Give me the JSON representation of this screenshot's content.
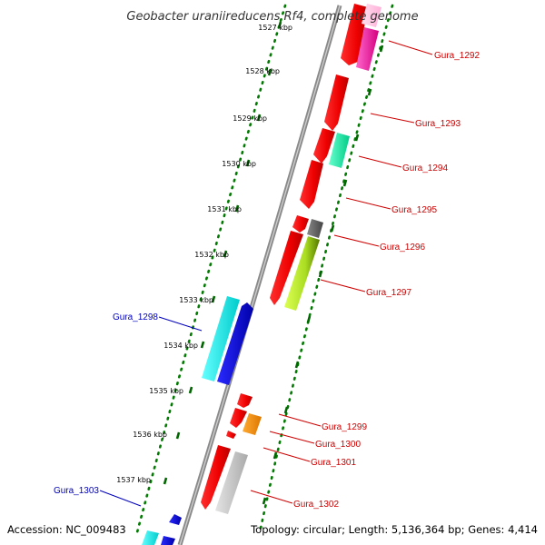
{
  "title": "Geobacter uraniireducens Rf4, complete genome",
  "accession": "Accession: NC_009483",
  "summary": "Topology: circular; Length: 5,136,364 bp; Genes: 4,414",
  "colors": {
    "forward_label": "#cc0000",
    "reverse_label": "#0000bb",
    "backbone": "#888888",
    "dots": "#007a00",
    "ticks": "#006600"
  },
  "kbp_ticks": [
    "1527 kbp",
    "1528 kbp",
    "1529 kbp",
    "1530 kbp",
    "1531 kbp",
    "1532 kbp",
    "1533 kbp",
    "1534 kbp",
    "1535 kbp",
    "1536 kbp",
    "1537 kbp"
  ],
  "genes_forward": [
    {
      "id": "Gura_1292",
      "label": "Gura_1292"
    },
    {
      "id": "Gura_1293",
      "label": "Gura_1293"
    },
    {
      "id": "Gura_1294",
      "label": "Gura_1294"
    },
    {
      "id": "Gura_1295",
      "label": "Gura_1295"
    },
    {
      "id": "Gura_1296",
      "label": "Gura_1296"
    },
    {
      "id": "Gura_1297",
      "label": "Gura_1297"
    },
    {
      "id": "Gura_1299",
      "label": "Gura_1299"
    },
    {
      "id": "Gura_1300",
      "label": "Gura_1300"
    },
    {
      "id": "Gura_1301",
      "label": "Gura_1301"
    },
    {
      "id": "Gura_1302",
      "label": "Gura_1302"
    }
  ],
  "genes_reverse": [
    {
      "id": "Gura_1298",
      "label": "Gura_1298"
    },
    {
      "id": "Gura_1303",
      "label": "Gura_1303"
    }
  ]
}
